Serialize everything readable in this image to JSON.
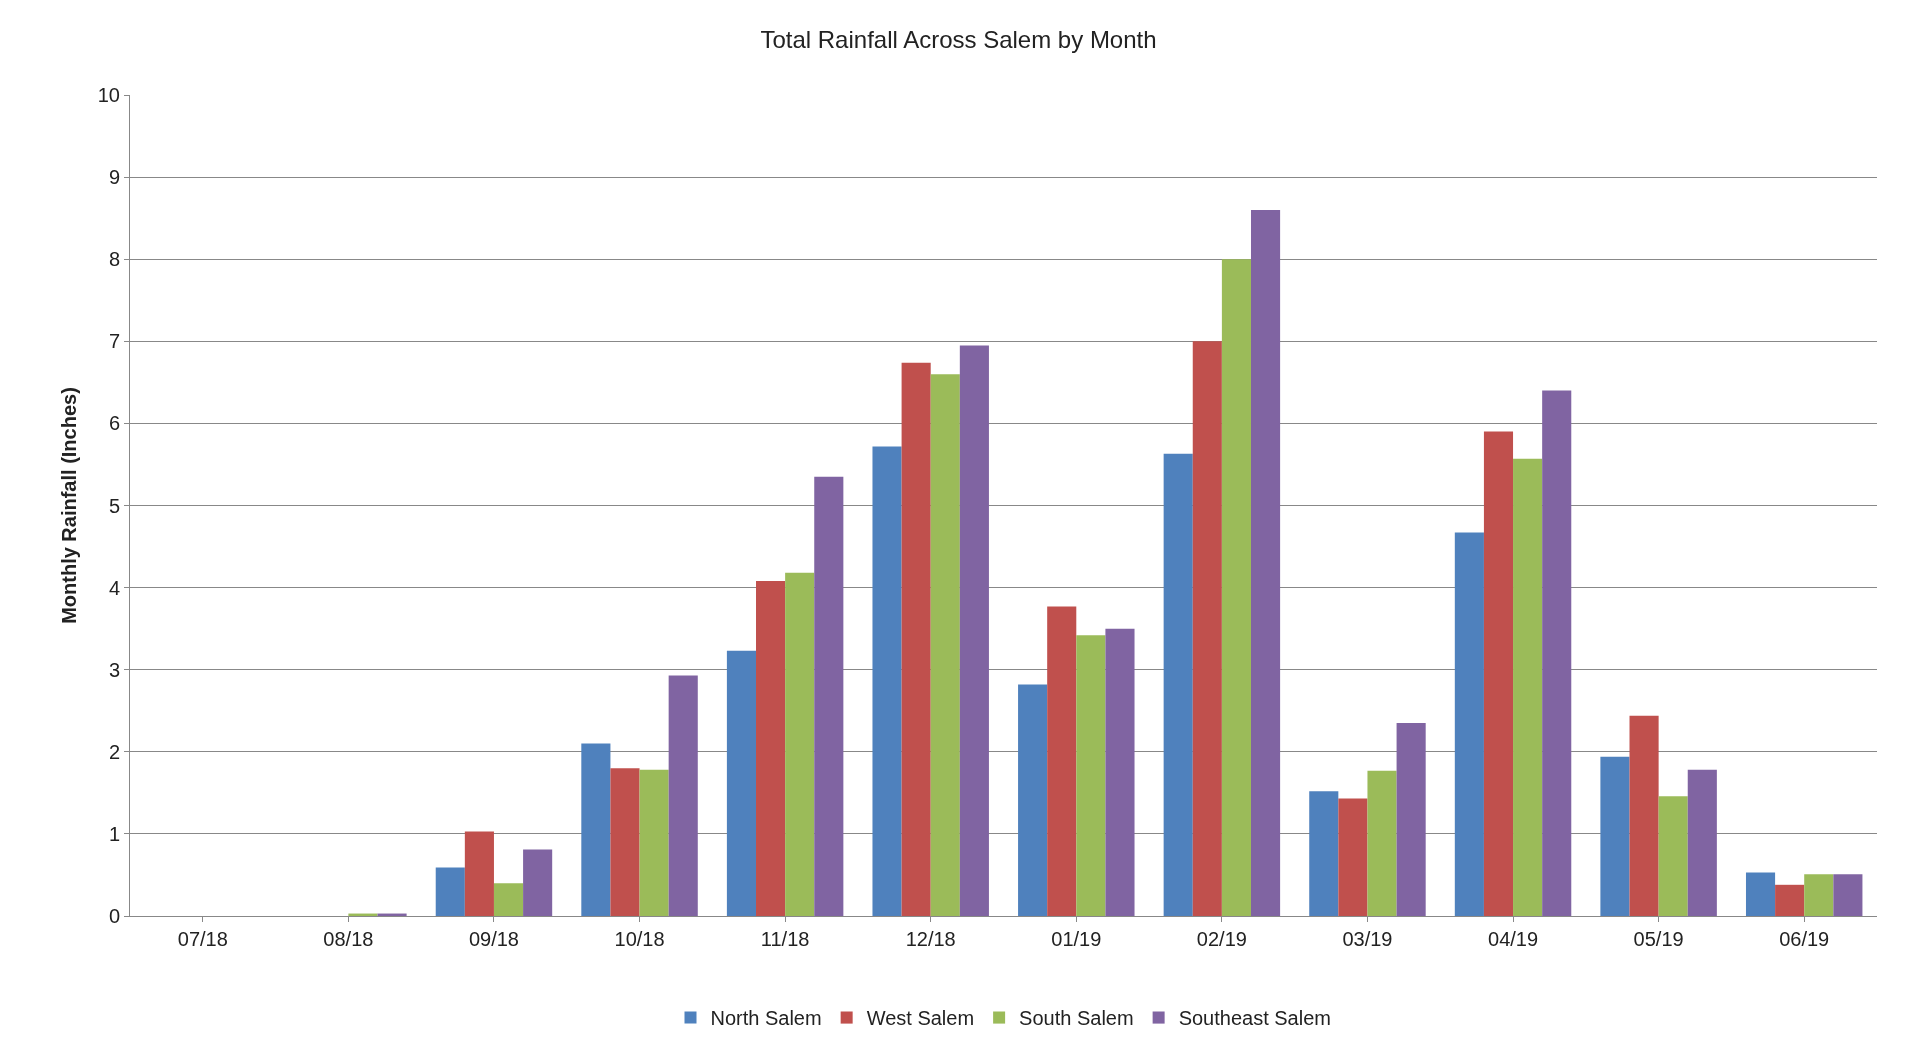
{
  "chart_data": {
    "type": "bar",
    "title": "Total Rainfall Across Salem by Month",
    "ylabel": "Monthly Rainfall (Inches)",
    "categories": [
      "07/18",
      "08/18",
      "09/18",
      "10/18",
      "11/18",
      "12/18",
      "01/19",
      "02/19",
      "03/19",
      "04/19",
      "05/19",
      "06/19"
    ],
    "series": [
      {
        "name": "North Salem",
        "color": "#4f81bd",
        "values": [
          0,
          0,
          0.59,
          2.1,
          3.23,
          5.72,
          2.82,
          5.63,
          1.52,
          4.67,
          1.94,
          0.53
        ]
      },
      {
        "name": "West Salem",
        "color": "#c0504d",
        "values": [
          0,
          0,
          1.03,
          1.8,
          4.08,
          6.74,
          3.77,
          7.0,
          1.43,
          5.9,
          2.44,
          0.38
        ]
      },
      {
        "name": "South Salem",
        "color": "#9bbb59",
        "values": [
          0,
          0.03,
          0.4,
          1.78,
          4.18,
          6.6,
          3.42,
          8.0,
          1.77,
          5.57,
          1.46,
          0.51
        ]
      },
      {
        "name": "Southeast Salem",
        "color": "#8064a2",
        "values": [
          0,
          0.03,
          0.81,
          2.93,
          5.35,
          6.95,
          3.5,
          8.6,
          2.35,
          6.4,
          1.78,
          0.51
        ]
      }
    ],
    "ylim": [
      0,
      10
    ],
    "yticks": [
      0,
      1,
      2,
      3,
      4,
      5,
      6,
      7,
      8,
      9,
      10
    ],
    "grid": "y",
    "legend": "bottom"
  }
}
